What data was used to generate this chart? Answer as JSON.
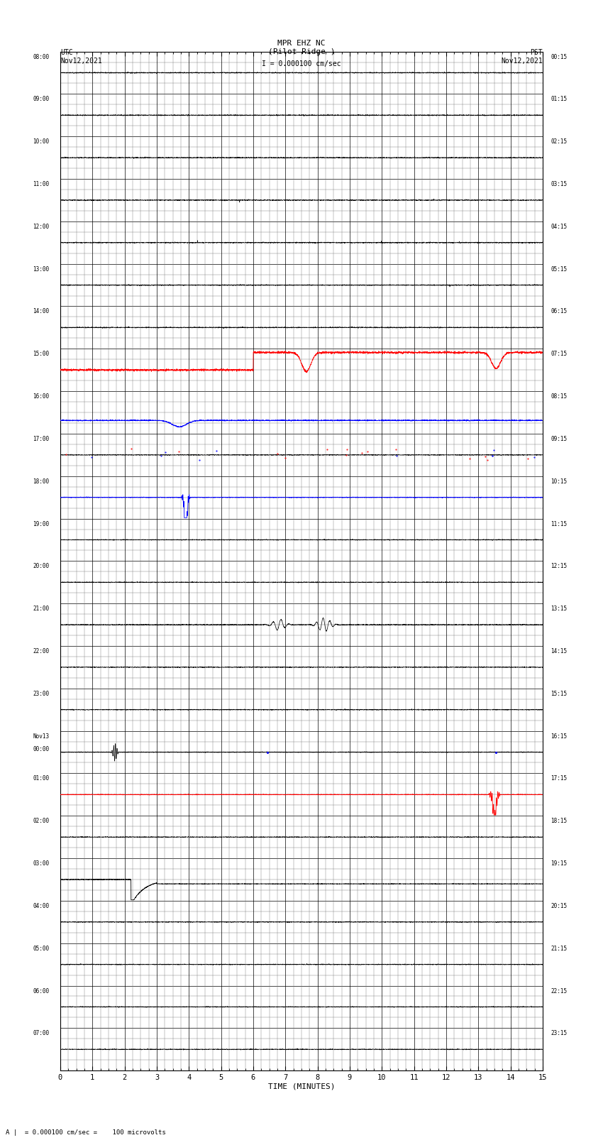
{
  "title_line1": "MPR EHZ NC",
  "title_line2": "(Pilot Ridge )",
  "title_line3": "I = 0.000100 cm/sec",
  "left_label_line1": "UTC",
  "left_label_line2": "Nov12,2021",
  "right_label_line1": "PST",
  "right_label_line2": "Nov12,2021",
  "bottom_label": "TIME (MINUTES)",
  "scale_label": "A |  = 0.000100 cm/sec =    100 microvolts",
  "utc_times": [
    "08:00",
    "09:00",
    "10:00",
    "11:00",
    "12:00",
    "13:00",
    "14:00",
    "15:00",
    "16:00",
    "17:00",
    "18:00",
    "19:00",
    "20:00",
    "21:00",
    "22:00",
    "23:00",
    "Nov13\n00:00",
    "01:00",
    "02:00",
    "03:00",
    "04:00",
    "05:00",
    "06:00",
    "07:00"
  ],
  "pst_times": [
    "00:15",
    "01:15",
    "02:15",
    "03:15",
    "04:15",
    "05:15",
    "06:15",
    "07:15",
    "08:15",
    "09:15",
    "10:15",
    "11:15",
    "12:15",
    "13:15",
    "14:15",
    "15:15",
    "16:15",
    "17:15",
    "18:15",
    "19:15",
    "20:15",
    "21:15",
    "22:15",
    "23:15"
  ],
  "n_rows": 24,
  "x_min": 0,
  "x_max": 15,
  "x_ticks": [
    0,
    1,
    2,
    3,
    4,
    5,
    6,
    7,
    8,
    9,
    10,
    11,
    12,
    13,
    14,
    15
  ],
  "bg_color": "#ffffff",
  "major_grid_color": "#000000",
  "minor_grid_color": "#888888",
  "figure_width": 8.5,
  "figure_height": 16.13
}
